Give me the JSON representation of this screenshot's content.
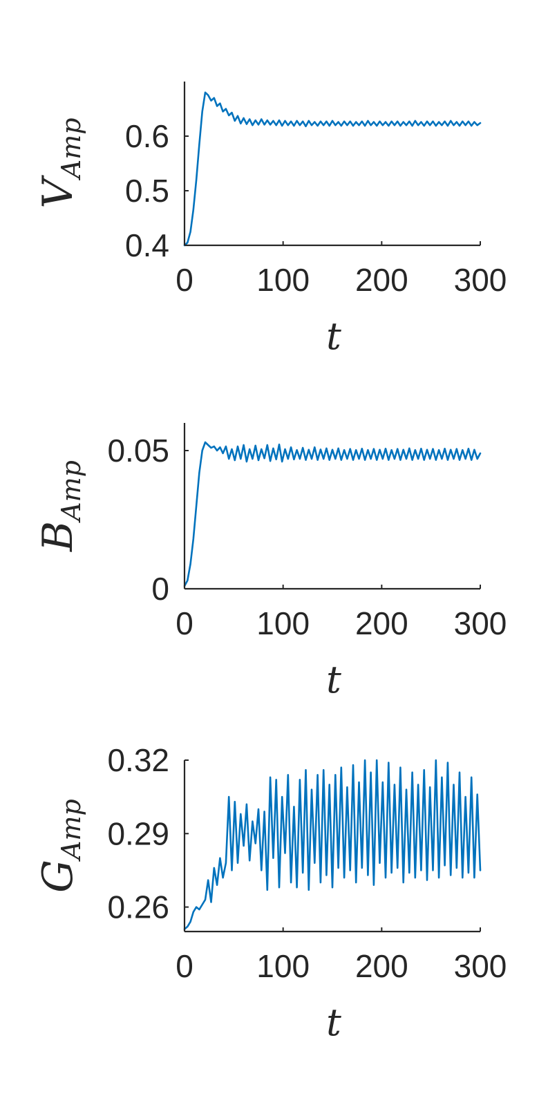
{
  "colors": {
    "series": "#0072BD",
    "axis": "#262626"
  },
  "chart_data": [
    {
      "type": "line",
      "title": "",
      "xlabel": "t",
      "ylabel": {
        "base": "V",
        "sub": "Amp"
      },
      "xlim": [
        0,
        300
      ],
      "ylim": [
        0.4,
        0.7
      ],
      "xticks": [
        0,
        100,
        200,
        300
      ],
      "xtick_labels": [
        "0",
        "100",
        "200",
        "300"
      ],
      "yticks": [
        0.4,
        0.5,
        0.6
      ],
      "ytick_labels": [
        "0.4",
        "0.5",
        "0.6"
      ],
      "grid": false,
      "series": [
        {
          "x": [
            0,
            3,
            6,
            9,
            12,
            15,
            18,
            21,
            24,
            27,
            30,
            33,
            36,
            39,
            42,
            45,
            48,
            51,
            54,
            57,
            60,
            63,
            66,
            69,
            72,
            75,
            78,
            81,
            84,
            87,
            90,
            93,
            96,
            99,
            102,
            105,
            108,
            111,
            114,
            117,
            120,
            123,
            126,
            129,
            132,
            135,
            138,
            141,
            144,
            147,
            150,
            153,
            156,
            159,
            162,
            165,
            168,
            171,
            174,
            177,
            180,
            183,
            186,
            189,
            192,
            195,
            198,
            201,
            204,
            207,
            210,
            213,
            216,
            219,
            222,
            225,
            228,
            231,
            234,
            237,
            240,
            243,
            246,
            249,
            252,
            255,
            258,
            261,
            264,
            267,
            270,
            273,
            276,
            279,
            282,
            285,
            288,
            291,
            294,
            297,
            300
          ],
          "y": [
            0.4,
            0.405,
            0.425,
            0.465,
            0.52,
            0.585,
            0.645,
            0.68,
            0.675,
            0.665,
            0.67,
            0.655,
            0.66,
            0.645,
            0.65,
            0.638,
            0.643,
            0.628,
            0.637,
            0.623,
            0.633,
            0.622,
            0.631,
            0.62,
            0.629,
            0.621,
            0.631,
            0.621,
            0.629,
            0.621,
            0.628,
            0.62,
            0.629,
            0.619,
            0.628,
            0.62,
            0.627,
            0.619,
            0.628,
            0.62,
            0.627,
            0.618,
            0.628,
            0.62,
            0.626,
            0.619,
            0.627,
            0.62,
            0.627,
            0.619,
            0.628,
            0.62,
            0.626,
            0.619,
            0.627,
            0.62,
            0.627,
            0.619,
            0.626,
            0.62,
            0.627,
            0.619,
            0.628,
            0.62,
            0.626,
            0.619,
            0.627,
            0.62,
            0.626,
            0.619,
            0.627,
            0.62,
            0.627,
            0.619,
            0.626,
            0.62,
            0.627,
            0.619,
            0.628,
            0.62,
            0.626,
            0.619,
            0.627,
            0.62,
            0.627,
            0.619,
            0.626,
            0.62,
            0.627,
            0.619,
            0.628,
            0.62,
            0.626,
            0.619,
            0.627,
            0.62,
            0.627,
            0.619,
            0.626,
            0.62,
            0.624
          ]
        }
      ]
    },
    {
      "type": "line",
      "title": "",
      "xlabel": "t",
      "ylabel": {
        "base": "B",
        "sub": "Amp"
      },
      "xlim": [
        0,
        300
      ],
      "ylim": [
        0,
        0.06
      ],
      "xticks": [
        0,
        100,
        200,
        300
      ],
      "xtick_labels": [
        "0",
        "100",
        "200",
        "300"
      ],
      "yticks": [
        0,
        0.05
      ],
      "ytick_labels": [
        "0",
        "0.05"
      ],
      "grid": false,
      "series": [
        {
          "x": [
            0,
            3,
            6,
            9,
            12,
            15,
            18,
            21,
            24,
            27,
            30,
            33,
            36,
            39,
            42,
            45,
            48,
            51,
            54,
            57,
            60,
            63,
            66,
            69,
            72,
            75,
            78,
            81,
            84,
            87,
            90,
            93,
            96,
            99,
            102,
            105,
            108,
            111,
            114,
            117,
            120,
            123,
            126,
            129,
            132,
            135,
            138,
            141,
            144,
            147,
            150,
            153,
            156,
            159,
            162,
            165,
            168,
            171,
            174,
            177,
            180,
            183,
            186,
            189,
            192,
            195,
            198,
            201,
            204,
            207,
            210,
            213,
            216,
            219,
            222,
            225,
            228,
            231,
            234,
            237,
            240,
            243,
            246,
            249,
            252,
            255,
            258,
            261,
            264,
            267,
            270,
            273,
            276,
            279,
            282,
            285,
            288,
            291,
            294,
            297,
            300
          ],
          "y": [
            0.001,
            0.003,
            0.009,
            0.018,
            0.03,
            0.042,
            0.05,
            0.053,
            0.052,
            0.051,
            0.0515,
            0.05,
            0.0512,
            0.049,
            0.0515,
            0.047,
            0.0505,
            0.0465,
            0.0515,
            0.047,
            0.052,
            0.046,
            0.0505,
            0.047,
            0.0518,
            0.0465,
            0.0505,
            0.0472,
            0.052,
            0.0462,
            0.0508,
            0.0468,
            0.0522,
            0.046,
            0.0505,
            0.047,
            0.0512,
            0.0468,
            0.0502,
            0.047,
            0.051,
            0.0466,
            0.0503,
            0.047,
            0.0512,
            0.0466,
            0.0504,
            0.047,
            0.0508,
            0.0466,
            0.0503,
            0.047,
            0.0508,
            0.0466,
            0.0502,
            0.047,
            0.0506,
            0.0466,
            0.0502,
            0.047,
            0.0507,
            0.0466,
            0.0502,
            0.047,
            0.0506,
            0.0466,
            0.0503,
            0.047,
            0.0507,
            0.0466,
            0.0502,
            0.047,
            0.0506,
            0.0466,
            0.0503,
            0.047,
            0.0508,
            0.0466,
            0.0502,
            0.047,
            0.0507,
            0.0466,
            0.0503,
            0.047,
            0.0506,
            0.0466,
            0.0502,
            0.047,
            0.0507,
            0.0466,
            0.0503,
            0.047,
            0.0506,
            0.0466,
            0.0502,
            0.047,
            0.0507,
            0.0466,
            0.0503,
            0.047,
            0.049
          ]
        }
      ]
    },
    {
      "type": "line",
      "title": "",
      "xlabel": "t",
      "ylabel": {
        "base": "G",
        "sub": "Amp"
      },
      "xlim": [
        0,
        300
      ],
      "ylim": [
        0.25,
        0.32
      ],
      "xticks": [
        0,
        100,
        200,
        300
      ],
      "xtick_labels": [
        "0",
        "100",
        "200",
        "300"
      ],
      "yticks": [
        0.26,
        0.29,
        0.32
      ],
      "ytick_labels": [
        "0.26",
        "0.29",
        "0.32"
      ],
      "grid": false,
      "series": [
        {
          "x": [
            0,
            3,
            6,
            9,
            12,
            15,
            18,
            21,
            24,
            27,
            30,
            33,
            36,
            39,
            42,
            45,
            48,
            51,
            54,
            57,
            60,
            63,
            66,
            69,
            72,
            75,
            78,
            81,
            84,
            87,
            90,
            93,
            96,
            99,
            102,
            105,
            108,
            111,
            114,
            117,
            120,
            123,
            126,
            129,
            132,
            135,
            138,
            141,
            144,
            147,
            150,
            153,
            156,
            159,
            162,
            165,
            168,
            171,
            174,
            177,
            180,
            183,
            186,
            189,
            192,
            195,
            198,
            201,
            204,
            207,
            210,
            213,
            216,
            219,
            222,
            225,
            228,
            231,
            234,
            237,
            240,
            243,
            246,
            249,
            252,
            255,
            258,
            261,
            264,
            267,
            270,
            273,
            276,
            279,
            282,
            285,
            288,
            291,
            294,
            297,
            300
          ],
          "y": [
            0.251,
            0.252,
            0.254,
            0.258,
            0.26,
            0.259,
            0.261,
            0.263,
            0.271,
            0.262,
            0.276,
            0.269,
            0.28,
            0.272,
            0.278,
            0.305,
            0.275,
            0.303,
            0.278,
            0.298,
            0.285,
            0.302,
            0.279,
            0.295,
            0.286,
            0.3,
            0.275,
            0.299,
            0.267,
            0.313,
            0.28,
            0.312,
            0.268,
            0.305,
            0.282,
            0.314,
            0.27,
            0.301,
            0.268,
            0.312,
            0.274,
            0.316,
            0.267,
            0.308,
            0.278,
            0.314,
            0.27,
            0.316,
            0.273,
            0.31,
            0.268,
            0.314,
            0.276,
            0.317,
            0.272,
            0.309,
            0.275,
            0.318,
            0.27,
            0.311,
            0.276,
            0.32,
            0.273,
            0.315,
            0.269,
            0.32,
            0.278,
            0.311,
            0.272,
            0.319,
            0.274,
            0.31,
            0.276,
            0.317,
            0.27,
            0.308,
            0.274,
            0.315,
            0.272,
            0.31,
            0.275,
            0.316,
            0.271,
            0.309,
            0.275,
            0.32,
            0.272,
            0.313,
            0.277,
            0.319,
            0.273,
            0.31,
            0.276,
            0.315,
            0.272,
            0.305,
            0.274,
            0.313,
            0.272,
            0.306,
            0.275
          ]
        }
      ]
    }
  ]
}
